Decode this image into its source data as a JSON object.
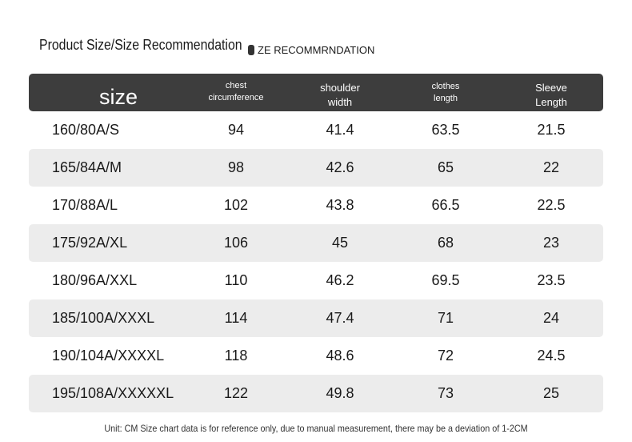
{
  "header": {
    "title": "Product Size/Size Recommendation",
    "subtitle": "ZE RECOMMRNDATION"
  },
  "table": {
    "columns": [
      "size",
      "chest\ncircumference",
      "shoulder\nwidth",
      "clothes\nlength",
      "Sleeve\nLength"
    ],
    "rows": [
      [
        "160/80A/S",
        94,
        41.4,
        63.5,
        21.5
      ],
      [
        "165/84A/M",
        98,
        42.6,
        65,
        22
      ],
      [
        "170/88A/L",
        102,
        43.8,
        66.5,
        22.5
      ],
      [
        "175/92A/XL",
        106,
        45,
        68,
        23
      ],
      [
        "180/96A/XXL",
        110,
        46.2,
        69.5,
        23.5
      ],
      [
        "185/100A/XXXL",
        114,
        47.4,
        71,
        24
      ],
      [
        "190/104A/XXXXL",
        118,
        48.6,
        72,
        24.5
      ],
      [
        "195/108A/XXXXXL",
        122,
        49.8,
        73,
        25
      ]
    ]
  },
  "footer": {
    "note": "Unit: CM Size chart data is for reference only, due to manual measurement, there may be a deviation of 1-2CM"
  }
}
